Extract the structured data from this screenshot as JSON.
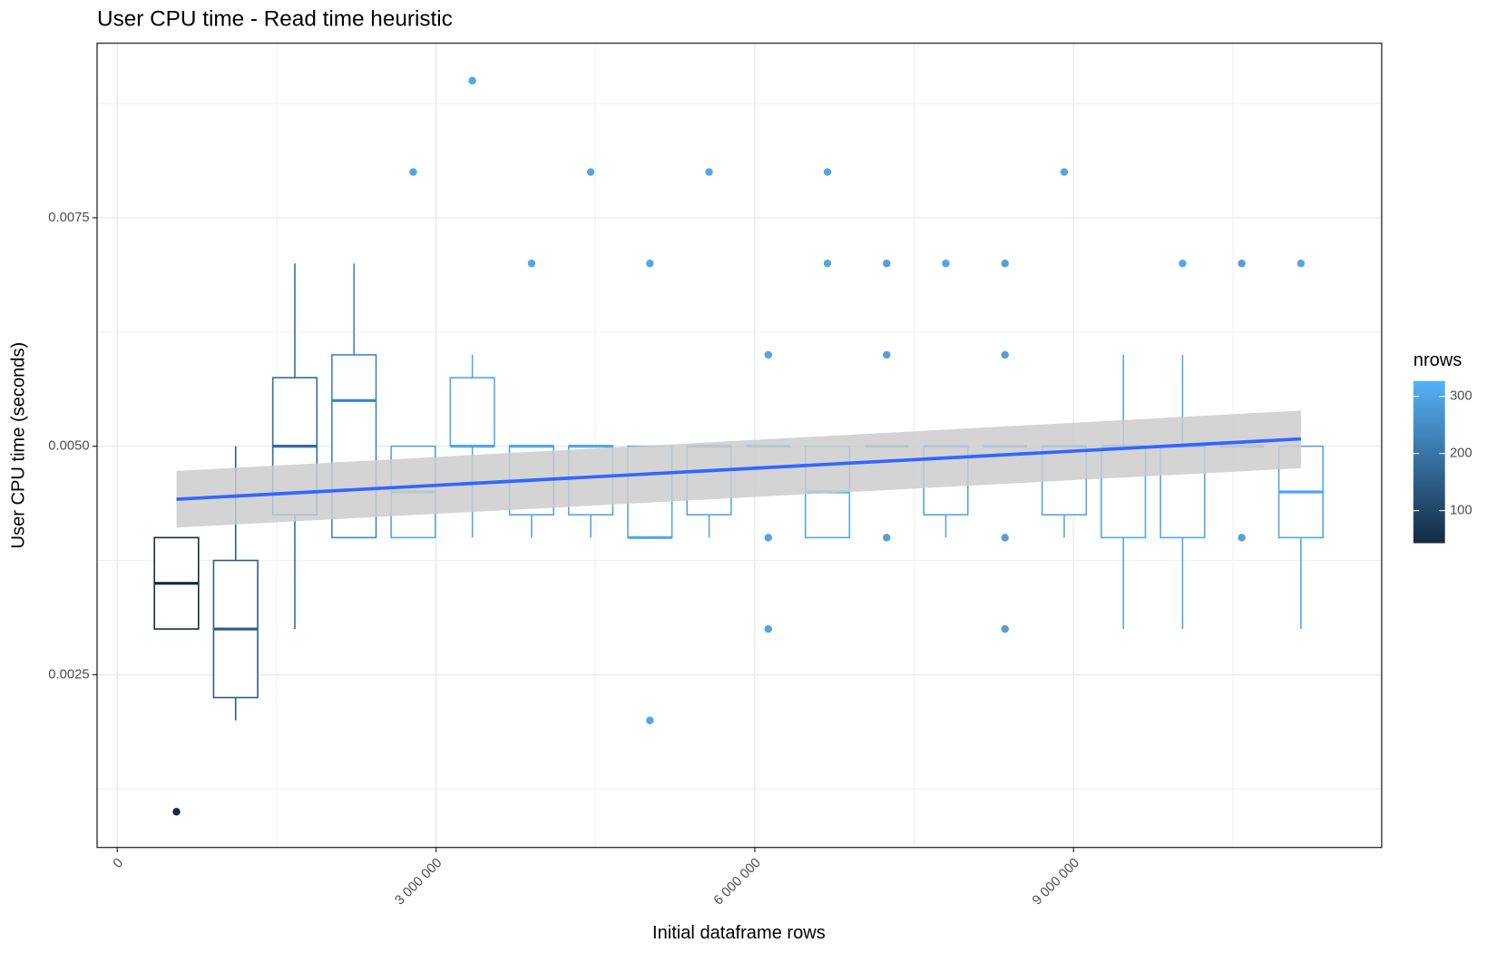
{
  "chart_data": {
    "type": "boxplot",
    "title": "User CPU time - Read time heuristic",
    "x_label": "Initial dataframe rows",
    "y_label": "User CPU time (seconds)",
    "xlim": [
      -190000,
      11900000
    ],
    "ylim": [
      0.00061,
      0.00941
    ],
    "xticks": [
      0,
      {
        "value": 3000000,
        "label": "3 000 000"
      },
      {
        "value": 6000000,
        "label": "6 000 000"
      },
      {
        "value": 9000000,
        "label": "9 000 000"
      }
    ],
    "yticks": [
      0.0025,
      {
        "value": 0.005,
        "label": "0.0050"
      },
      0.0075
    ],
    "x_minor": [
      1500000,
      4500000,
      7500000,
      10500000
    ],
    "y_minor": [
      0.00125,
      0.00375,
      0.00625,
      0.00875
    ],
    "grid": true,
    "box_width": 415000,
    "boxes": [
      {
        "x": 557000,
        "low": 0.003,
        "q1": 0.003,
        "median": 0.0035,
        "q3": 0.004,
        "high": 0.004,
        "outliers": [
          0.001
        ],
        "color": "#132b43"
      },
      {
        "x": 1114000,
        "low": 0.002,
        "q1": 0.00225,
        "median": 0.003,
        "q3": 0.00375,
        "high": 0.005,
        "outliers": [],
        "color": "#2b5b87"
      },
      {
        "x": 1671000,
        "low": 0.003,
        "q1": 0.00425,
        "median": 0.005,
        "q3": 0.00575,
        "high": 0.007,
        "outliers": [],
        "color": "#336c9f"
      },
      {
        "x": 2228000,
        "low": 0.004,
        "q1": 0.004,
        "median": 0.0055,
        "q3": 0.006,
        "high": 0.007,
        "outliers": [],
        "color": "#3d84c2"
      },
      {
        "x": 2785000,
        "low": 0.004,
        "q1": 0.004,
        "median": 0.0045,
        "q3": 0.005,
        "high": 0.005,
        "outliers": [
          0.008
        ],
        "color": "#53a6e6"
      },
      {
        "x": 3342000,
        "low": 0.004,
        "q1": 0.005,
        "median": 0.005,
        "q3": 0.00575,
        "high": 0.006,
        "outliers": [
          0.009
        ],
        "color": "#53a6e6"
      },
      {
        "x": 3899000,
        "low": 0.004,
        "q1": 0.00425,
        "median": 0.005,
        "q3": 0.005,
        "high": 0.005,
        "outliers": [
          0.007
        ],
        "color": "#53a6e6"
      },
      {
        "x": 4456000,
        "low": 0.004,
        "q1": 0.00425,
        "median": 0.005,
        "q3": 0.005,
        "high": 0.005,
        "outliers": [
          0.008
        ],
        "color": "#53a6e6"
      },
      {
        "x": 5013000,
        "low": 0.004,
        "q1": 0.004,
        "median": 0.004,
        "q3": 0.005,
        "high": 0.005,
        "outliers": [
          0.007,
          0.002
        ],
        "color": "#53a6e6"
      },
      {
        "x": 5570000,
        "low": 0.004,
        "q1": 0.00425,
        "median": 0.005,
        "q3": 0.005,
        "high": 0.005,
        "outliers": [
          0.008
        ],
        "color": "#53a6e6"
      },
      {
        "x": 6127000,
        "low": 0.005,
        "q1": 0.005,
        "median": 0.005,
        "q3": 0.005,
        "high": 0.005,
        "outliers": [
          0.006,
          0.004,
          0.003
        ],
        "color": "#53a6e6"
      },
      {
        "x": 6684000,
        "low": 0.004,
        "q1": 0.004,
        "median": 0.0045,
        "q3": 0.005,
        "high": 0.005,
        "outliers": [
          0.008,
          0.007
        ],
        "color": "#53a6e6"
      },
      {
        "x": 7241000,
        "low": 0.005,
        "q1": 0.005,
        "median": 0.005,
        "q3": 0.005,
        "high": 0.005,
        "outliers": [
          0.007,
          0.006,
          0.004
        ],
        "color": "#5a9dd0"
      },
      {
        "x": 7798000,
        "low": 0.004,
        "q1": 0.00425,
        "median": 0.005,
        "q3": 0.005,
        "high": 0.005,
        "outliers": [
          0.007
        ],
        "color": "#53a6e6"
      },
      {
        "x": 8355000,
        "low": 0.005,
        "q1": 0.005,
        "median": 0.005,
        "q3": 0.005,
        "high": 0.005,
        "outliers": [
          0.007,
          0.006,
          0.004,
          0.003
        ],
        "color": "#5a9dd0"
      },
      {
        "x": 8912000,
        "low": 0.004,
        "q1": 0.00425,
        "median": 0.005,
        "q3": 0.005,
        "high": 0.005,
        "outliers": [
          0.008
        ],
        "color": "#53a6e6"
      },
      {
        "x": 9469000,
        "low": 0.003,
        "q1": 0.004,
        "median": 0.005,
        "q3": 0.005,
        "high": 0.006,
        "outliers": [],
        "color": "#53a6e6"
      },
      {
        "x": 10026000,
        "low": 0.003,
        "q1": 0.004,
        "median": 0.005,
        "q3": 0.005,
        "high": 0.006,
        "outliers": [
          0.007
        ],
        "color": "#53a6e6"
      },
      {
        "x": 10583000,
        "low": 0.005,
        "q1": 0.005,
        "median": 0.005,
        "q3": 0.005,
        "high": 0.005,
        "outliers": [
          0.007,
          0.004
        ],
        "color": "#5a9dd0"
      },
      {
        "x": 11140000,
        "low": 0.003,
        "q1": 0.004,
        "median": 0.0045,
        "q3": 0.005,
        "high": 0.005,
        "outliers": [
          0.007
        ],
        "color": "#53a6e6"
      }
    ],
    "trend": {
      "x": [
        557000,
        11140000
      ],
      "y": [
        0.00442,
        0.00508
      ],
      "lower": [
        0.00411,
        0.00476
      ],
      "upper": [
        0.00473,
        0.00539
      ],
      "color": "#3366ff",
      "band_color": "#cccccc"
    },
    "legend": {
      "title": "nrows",
      "position": "right",
      "lim": [
        43,
        327
      ],
      "ticks": [
        100,
        200,
        300
      ],
      "colors": [
        "#132b43",
        "#56b1f7"
      ]
    }
  }
}
